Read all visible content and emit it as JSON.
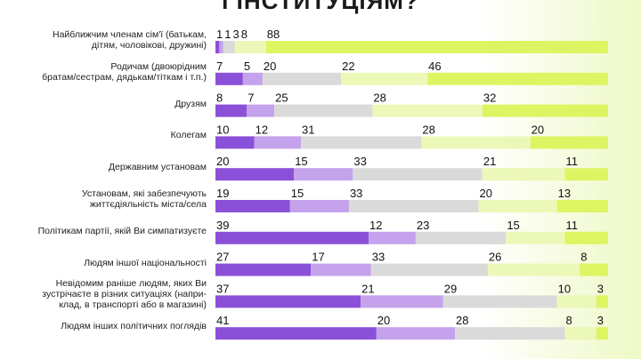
{
  "chart_data": {
    "type": "stacked-bar",
    "title": "І ІНСТИТУЦІЯМ?",
    "categories": [
      "Найближчим членам сім'ї (батькам,\nдітям, чоловікові, дружині)",
      "Родичам (двоюрідним\nбратам/сестрам, дядькам/тіткам і т.п.)",
      "Друзям",
      "Колегам",
      "Державним установам",
      "Установам, які забезпечують\nжиттєдіяльність міста/села",
      "Політикам партії, якій Ви симпатизуєте",
      "Людям іншої національності",
      "Невідомим раніше людям, яких Ви\nзустрічаєте в різних ситуаціях (напри-\nклад, в транспорті або в магазині)",
      "Людям інших політичних поглядів"
    ],
    "series": [
      {
        "color": "#8b50d8",
        "values": [
          1,
          7,
          8,
          10,
          20,
          19,
          39,
          27,
          37,
          41
        ]
      },
      {
        "color": "#c4a2ec",
        "values": [
          1,
          5,
          7,
          12,
          15,
          15,
          12,
          17,
          21,
          20
        ]
      },
      {
        "color": "#dadada",
        "values": [
          3,
          20,
          25,
          31,
          33,
          33,
          23,
          33,
          29,
          28
        ]
      },
      {
        "color": "#ecf8b8",
        "values": [
          8,
          22,
          28,
          28,
          21,
          20,
          15,
          26,
          10,
          8
        ]
      },
      {
        "color": "#ddf562",
        "values": [
          88,
          46,
          32,
          20,
          11,
          13,
          11,
          8,
          3,
          3
        ]
      }
    ]
  }
}
